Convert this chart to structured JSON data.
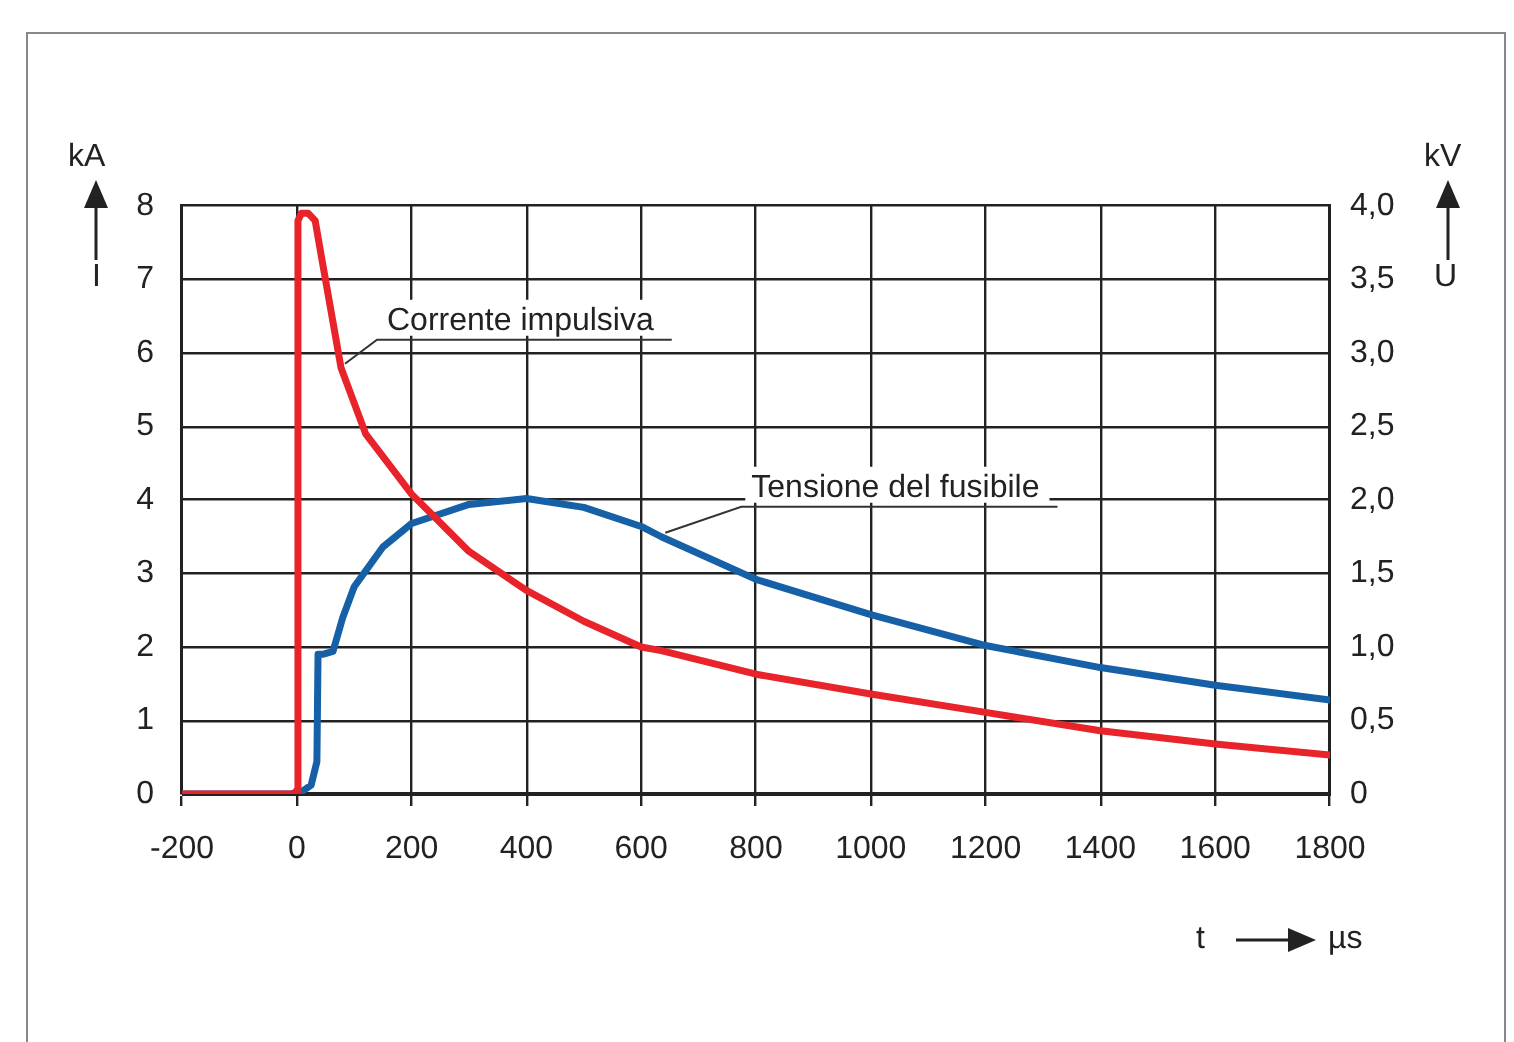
{
  "chart_data": {
    "type": "line",
    "xlabel": "t",
    "ylabel": "I",
    "y2label": "U",
    "annotations": [
      "kA",
      "kV",
      "µs"
    ],
    "xlim": [
      -200,
      1800
    ],
    "xticks": [
      -200,
      0,
      200,
      400,
      600,
      800,
      1000,
      1200,
      1400,
      1600,
      1800
    ],
    "ylim": [
      0,
      8
    ],
    "yticks": [
      0,
      1,
      2,
      3,
      4,
      5,
      6,
      7,
      8
    ],
    "y2lim": [
      0,
      4
    ],
    "y2ticks": [
      {
        "value": 0,
        "label": "0"
      },
      {
        "value": 0.5,
        "label": "0,5"
      },
      {
        "value": 1,
        "label": "1,0"
      },
      {
        "value": 1.5,
        "label": "1,5"
      },
      {
        "value": 2,
        "label": "2,0"
      },
      {
        "value": 2.5,
        "label": "2,5"
      },
      {
        "value": 3,
        "label": "3,0"
      },
      {
        "value": 3.5,
        "label": "3,5"
      },
      {
        "value": 4,
        "label": "4,0"
      }
    ],
    "grid": true,
    "legend": false,
    "marker": "none",
    "line_style": "solid",
    "series": [
      {
        "name": "Corrente impulsiva",
        "color": "#e8232a",
        "x": [
          -200,
          -5,
          0,
          2,
          8,
          20,
          32,
          42,
          77,
          120,
          200,
          300,
          400,
          500,
          600,
          635,
          800,
          1000,
          1200,
          1400,
          1600,
          1800
        ],
        "values": [
          0,
          0,
          0.05,
          7.8,
          7.9,
          7.9,
          7.8,
          7.35,
          5.8,
          4.9,
          4.08,
          3.3,
          2.77,
          2.35,
          2.0,
          1.95,
          1.63,
          1.36,
          1.11,
          0.86,
          0.68,
          0.53
        ]
      },
      {
        "name": "Tensione del fusibile",
        "color": "#1660a8",
        "axis": "y2",
        "x": [
          -200,
          -10,
          10,
          25,
          35,
          37,
          45,
          63,
          80,
          100,
          150,
          200,
          300,
          400,
          500,
          600,
          635,
          800,
          1000,
          1200,
          1400,
          1600,
          1800
        ],
        "values": [
          0,
          0,
          0.02,
          0.06,
          0.22,
          0.95,
          0.95,
          0.97,
          1.2,
          1.41,
          1.68,
          1.84,
          1.97,
          2.01,
          1.95,
          1.82,
          1.75,
          1.46,
          1.22,
          1.01,
          0.86,
          0.74,
          0.64
        ]
      }
    ]
  }
}
